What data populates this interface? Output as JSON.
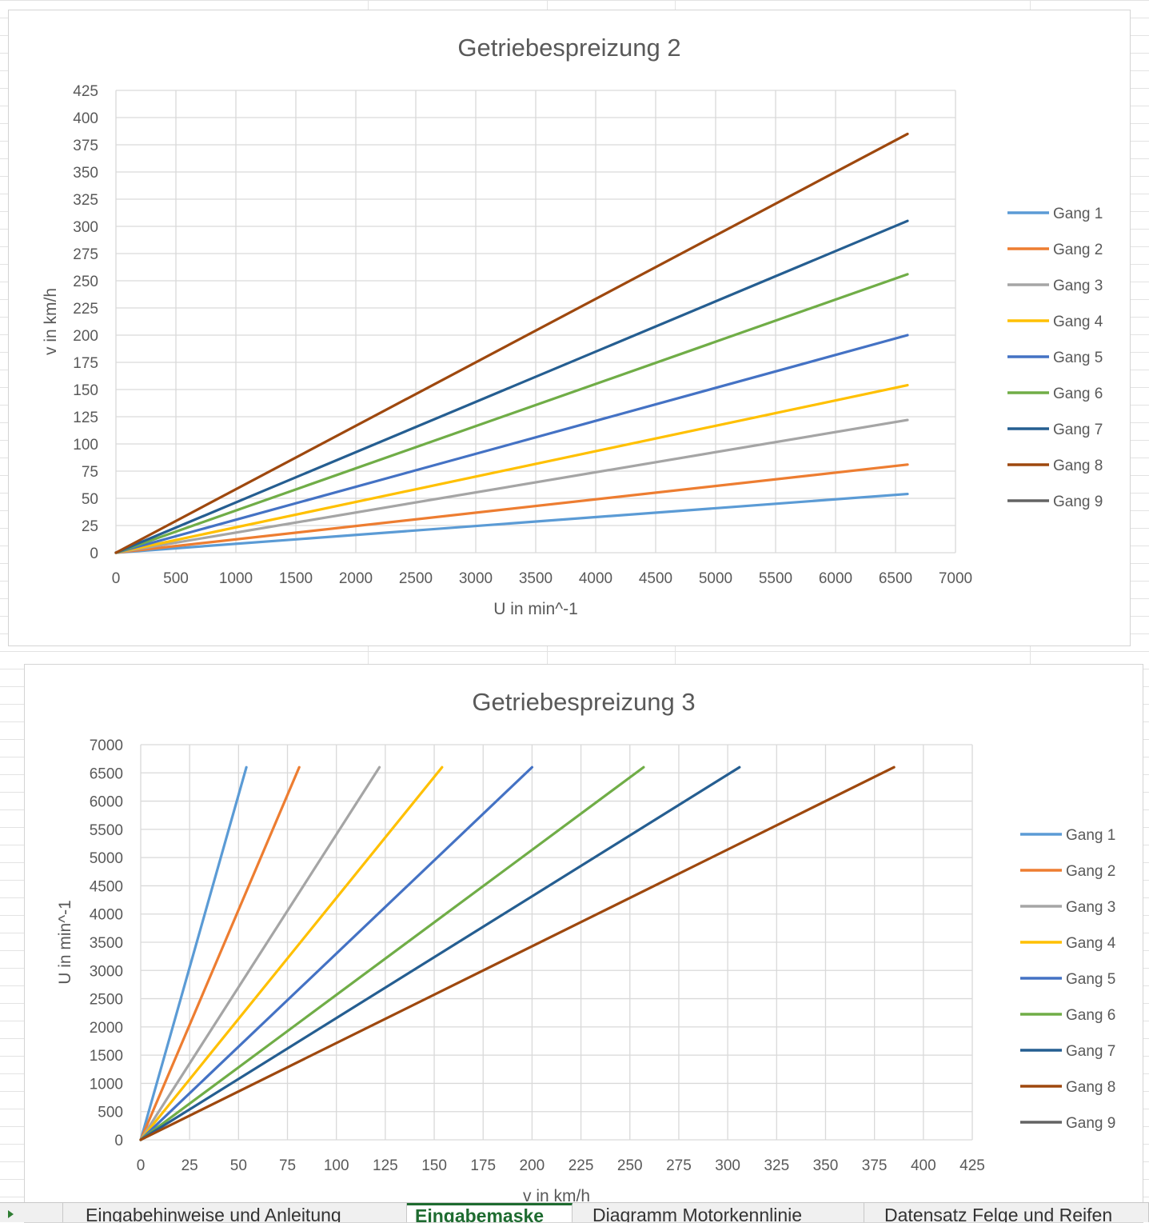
{
  "colors": {
    "Gang 1": "#5b9bd5",
    "Gang 2": "#ed7d31",
    "Gang 3": "#a5a5a5",
    "Gang 4": "#ffc000",
    "Gang 5": "#4472c4",
    "Gang 6": "#70ad47",
    "Gang 7": "#255e91",
    "Gang 8": "#9e480e",
    "Gang 9": "#636363"
  },
  "chart_data": [
    {
      "type": "line",
      "title": "Getriebespreizung 2",
      "xlabel": "U in min^-1",
      "ylabel": "v in km/h",
      "xlim": [
        0,
        7000
      ],
      "ylim": [
        0,
        425
      ],
      "xticks": [
        0,
        500,
        1000,
        1500,
        2000,
        2500,
        3000,
        3500,
        4000,
        4500,
        5000,
        5500,
        6000,
        6500,
        7000
      ],
      "yticks": [
        0,
        25,
        50,
        75,
        100,
        125,
        150,
        175,
        200,
        225,
        250,
        275,
        300,
        325,
        350,
        375,
        400,
        425
      ],
      "grid": true,
      "legend_position": "right",
      "series": [
        {
          "name": "Gang 1",
          "x": [
            0,
            6600
          ],
          "y": [
            0,
            54
          ]
        },
        {
          "name": "Gang 2",
          "x": [
            0,
            6600
          ],
          "y": [
            0,
            81
          ]
        },
        {
          "name": "Gang 3",
          "x": [
            0,
            6600
          ],
          "y": [
            0,
            122
          ]
        },
        {
          "name": "Gang 4",
          "x": [
            0,
            6600
          ],
          "y": [
            0,
            154
          ]
        },
        {
          "name": "Gang 5",
          "x": [
            0,
            6600
          ],
          "y": [
            0,
            200
          ]
        },
        {
          "name": "Gang 6",
          "x": [
            0,
            6600
          ],
          "y": [
            0,
            256
          ]
        },
        {
          "name": "Gang 7",
          "x": [
            0,
            6600
          ],
          "y": [
            0,
            305
          ]
        },
        {
          "name": "Gang 8",
          "x": [
            0,
            6600
          ],
          "y": [
            0,
            385
          ]
        },
        {
          "name": "Gang 9",
          "x": [],
          "y": []
        }
      ]
    },
    {
      "type": "line",
      "title": "Getriebespreizung 3",
      "xlabel": "v in km/h",
      "ylabel": "U in min^-1",
      "xlim": [
        0,
        425
      ],
      "ylim": [
        0,
        7000
      ],
      "xticks": [
        0,
        25,
        50,
        75,
        100,
        125,
        150,
        175,
        200,
        225,
        250,
        275,
        300,
        325,
        350,
        375,
        400,
        425
      ],
      "yticks": [
        0,
        500,
        1000,
        1500,
        2000,
        2500,
        3000,
        3500,
        4000,
        4500,
        5000,
        5500,
        6000,
        6500,
        7000
      ],
      "grid": true,
      "legend_position": "right",
      "series": [
        {
          "name": "Gang 1",
          "x": [
            0,
            54
          ],
          "y": [
            0,
            6600
          ]
        },
        {
          "name": "Gang 2",
          "x": [
            0,
            81
          ],
          "y": [
            0,
            6600
          ]
        },
        {
          "name": "Gang 3",
          "x": [
            0,
            122
          ],
          "y": [
            0,
            6600
          ]
        },
        {
          "name": "Gang 4",
          "x": [
            0,
            154
          ],
          "y": [
            0,
            6600
          ]
        },
        {
          "name": "Gang 5",
          "x": [
            0,
            200
          ],
          "y": [
            0,
            6600
          ]
        },
        {
          "name": "Gang 6",
          "x": [
            0,
            257
          ],
          "y": [
            0,
            6600
          ]
        },
        {
          "name": "Gang 7",
          "x": [
            0,
            306
          ],
          "y": [
            0,
            6600
          ]
        },
        {
          "name": "Gang 8",
          "x": [
            0,
            385
          ],
          "y": [
            0,
            6600
          ]
        },
        {
          "name": "Gang 9",
          "x": [],
          "y": []
        }
      ]
    }
  ],
  "sheet_tabs": [
    {
      "label": "Eingabehinweise und Anleitung",
      "active": false
    },
    {
      "label": "Eingabemaske",
      "active": true
    },
    {
      "label": "Diagramm Motorkennlinie",
      "active": false
    },
    {
      "label": "Datensatz Felge und Reifen",
      "active": false
    }
  ]
}
